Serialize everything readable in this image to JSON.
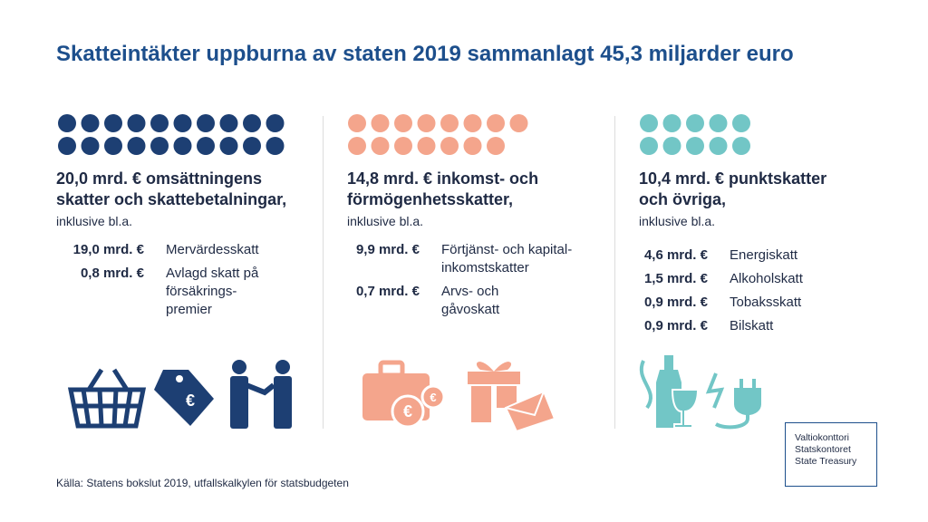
{
  "title": "Skatteintäkter uppburna av staten 2019 sammanlagt 45,3 miljarder euro",
  "columns": [
    {
      "heading": "20,0 mrd. € omsättningens\nskatter och skattebetalningar,",
      "subheading": "inklusive bl.a.",
      "items": [
        {
          "amount": "19,0 mrd. €",
          "label": "Mervärdesskatt"
        },
        {
          "amount": "0,8 mrd. €",
          "label": "Avlagd skatt på\nförsäkrings-\npremier"
        }
      ]
    },
    {
      "heading": "14,8 mrd. € inkomst- och\nförmögenhetsskatter,",
      "subheading": "inklusive bl.a.",
      "items": [
        {
          "amount": "9,9 mrd. €",
          "label": "Förtjänst- och kapital-\ninkomstskatter"
        },
        {
          "amount": "0,7 mrd. €",
          "label": "Arvs- och\ngåvoskatt"
        }
      ]
    },
    {
      "heading": "10,4 mrd. € punktskatter\noch övriga,",
      "subheading": "inklusive bl.a.",
      "items": [
        {
          "amount": "4,6 mrd. €",
          "label": "Energiskatt"
        },
        {
          "amount": "1,5 mrd. €",
          "label": "Alkoholskatt"
        },
        {
          "amount": "0,9 mrd. €",
          "label": "Tobaksskatt"
        },
        {
          "amount": "0,9 mrd. €",
          "label": "Bilskatt"
        }
      ]
    }
  ],
  "source": "Källa: Statens bokslut 2019, utfallskalkylen för statsbudgeten",
  "logo": [
    "Valtiokonttori",
    "Statskontoret",
    "State Treasury"
  ]
}
